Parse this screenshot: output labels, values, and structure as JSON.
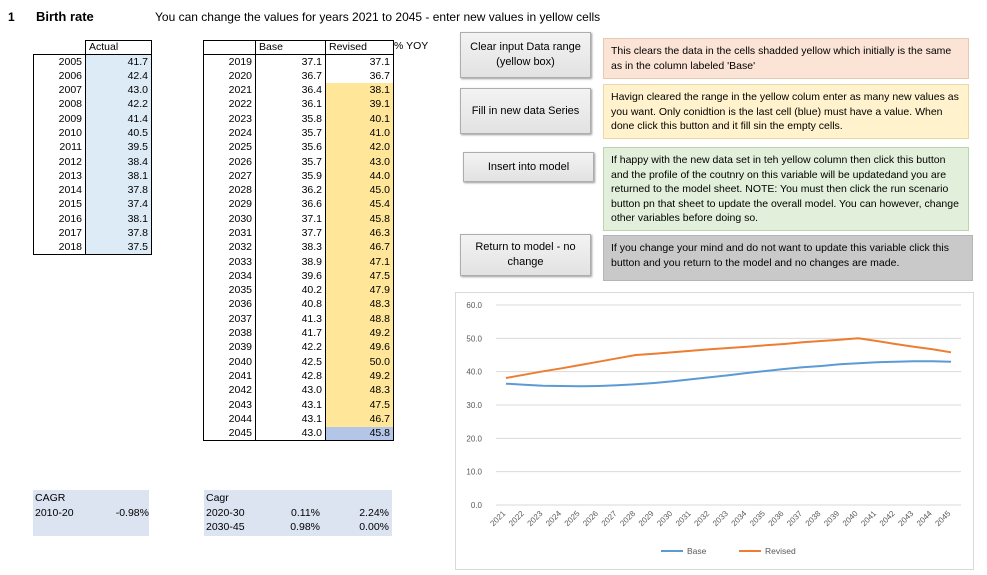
{
  "sheet": {
    "number": "1",
    "title": "Birth rate",
    "instruction": "You can change the values for years 2021 to 2045 - enter new values in yellow cells"
  },
  "actual_table": {
    "header": "Actual",
    "rows": [
      {
        "year": "2005",
        "value": "41.7"
      },
      {
        "year": "2006",
        "value": "42.4"
      },
      {
        "year": "2007",
        "value": "43.0"
      },
      {
        "year": "2008",
        "value": "42.2"
      },
      {
        "year": "2009",
        "value": "41.4"
      },
      {
        "year": "2010",
        "value": "40.5"
      },
      {
        "year": "2011",
        "value": "39.5"
      },
      {
        "year": "2012",
        "value": "38.4"
      },
      {
        "year": "2013",
        "value": "38.1"
      },
      {
        "year": "2014",
        "value": "37.8"
      },
      {
        "year": "2015",
        "value": "37.4"
      },
      {
        "year": "2016",
        "value": "38.1"
      },
      {
        "year": "2017",
        "value": "37.8"
      },
      {
        "year": "2018",
        "value": "37.5"
      }
    ]
  },
  "projection_table": {
    "header_base": "Base",
    "header_revised": "Revised",
    "header_yoy": "% YOY",
    "rows": [
      {
        "year": "2019",
        "base": "37.1",
        "revised": "37.1"
      },
      {
        "year": "2020",
        "base": "36.7",
        "revised": "36.7"
      },
      {
        "year": "2021",
        "base": "36.4",
        "revised": "38.1"
      },
      {
        "year": "2022",
        "base": "36.1",
        "revised": "39.1"
      },
      {
        "year": "2023",
        "base": "35.8",
        "revised": "40.1"
      },
      {
        "year": "2024",
        "base": "35.7",
        "revised": "41.0"
      },
      {
        "year": "2025",
        "base": "35.6",
        "revised": "42.0"
      },
      {
        "year": "2026",
        "base": "35.7",
        "revised": "43.0"
      },
      {
        "year": "2027",
        "base": "35.9",
        "revised": "44.0"
      },
      {
        "year": "2028",
        "base": "36.2",
        "revised": "45.0"
      },
      {
        "year": "2029",
        "base": "36.6",
        "revised": "45.4"
      },
      {
        "year": "2030",
        "base": "37.1",
        "revised": "45.8"
      },
      {
        "year": "2031",
        "base": "37.7",
        "revised": "46.3"
      },
      {
        "year": "2032",
        "base": "38.3",
        "revised": "46.7"
      },
      {
        "year": "2033",
        "base": "38.9",
        "revised": "47.1"
      },
      {
        "year": "2034",
        "base": "39.6",
        "revised": "47.5"
      },
      {
        "year": "2035",
        "base": "40.2",
        "revised": "47.9"
      },
      {
        "year": "2036",
        "base": "40.8",
        "revised": "48.3"
      },
      {
        "year": "2037",
        "base": "41.3",
        "revised": "48.8"
      },
      {
        "year": "2038",
        "base": "41.7",
        "revised": "49.2"
      },
      {
        "year": "2039",
        "base": "42.2",
        "revised": "49.6"
      },
      {
        "year": "2040",
        "base": "42.5",
        "revised": "50.0"
      },
      {
        "year": "2041",
        "base": "42.8",
        "revised": "49.2"
      },
      {
        "year": "2042",
        "base": "43.0",
        "revised": "48.3"
      },
      {
        "year": "2043",
        "base": "43.1",
        "revised": "47.5"
      },
      {
        "year": "2044",
        "base": "43.1",
        "revised": "46.7"
      },
      {
        "year": "2045",
        "base": "43.0",
        "revised": "45.8"
      }
    ]
  },
  "cagr_actual": {
    "label": "CAGR",
    "period": "2010-20",
    "value": "-0.98%"
  },
  "cagr_projection": {
    "label": "Cagr",
    "rows": [
      {
        "period": "2020-30",
        "base": "0.11%",
        "revised": "2.24%"
      },
      {
        "period": "2030-45",
        "base": "0.98%",
        "revised": "0.00%"
      }
    ]
  },
  "buttons": {
    "clear": "Clear input Data range (yellow box)",
    "fill": "Fill in new data Series",
    "insert": "Insert into model",
    "return": "Return to model - no change"
  },
  "notes": {
    "clear": "This clears the data in the cells shadded yellow which initially is the same as in the column labeled 'Base'",
    "fill": "Havign cleared the range in the yellow colum enter as many new values as you want.  Only conidtion is the last cell (blue) must have a value.  When done click this button and it fill sin the empty cells.",
    "insert": "If happy with the new data set in teh yellow column then click this button and the profile of the coutnry on this variable will be updatedand you are returned to the model sheet.  NOTE: You must then click the run scenario button pn that sheet to update the overall model.  You can however, change other variables before doing so.",
    "return": "If you change your mind and do not want to update this variable click this button and you return to the model and no changes are made."
  },
  "colors": {
    "actual_fill": "#ddebf7",
    "input_fill": "#ffe699",
    "last_cell_fill": "#b4c6e7",
    "base_line": "#5b9bd5",
    "revised_line": "#ed7d31"
  },
  "chart_data": {
    "type": "line",
    "x": [
      "2021",
      "2022",
      "2023",
      "2024",
      "2025",
      "2026",
      "2027",
      "2028",
      "2029",
      "2030",
      "2031",
      "2032",
      "2033",
      "2034",
      "2035",
      "2036",
      "2037",
      "2038",
      "2039",
      "2040",
      "2041",
      "2042",
      "2043",
      "2044",
      "2045"
    ],
    "series": [
      {
        "name": "Base",
        "values": [
          36.4,
          36.1,
          35.8,
          35.7,
          35.6,
          35.7,
          35.9,
          36.2,
          36.6,
          37.1,
          37.7,
          38.3,
          38.9,
          39.6,
          40.2,
          40.8,
          41.3,
          41.7,
          42.2,
          42.5,
          42.8,
          43.0,
          43.1,
          43.1,
          43.0
        ]
      },
      {
        "name": "Revised",
        "values": [
          38.1,
          39.1,
          40.1,
          41.0,
          42.0,
          43.0,
          44.0,
          45.0,
          45.4,
          45.8,
          46.3,
          46.7,
          47.1,
          47.5,
          47.9,
          48.3,
          48.8,
          49.2,
          49.6,
          50.0,
          49.2,
          48.3,
          47.5,
          46.7,
          45.8
        ]
      }
    ],
    "yticks": [
      "0.0",
      "10.0",
      "20.0",
      "30.0",
      "40.0",
      "50.0",
      "60.0"
    ],
    "ylim": [
      0,
      60
    ],
    "grid": true,
    "legend": "bottom"
  }
}
